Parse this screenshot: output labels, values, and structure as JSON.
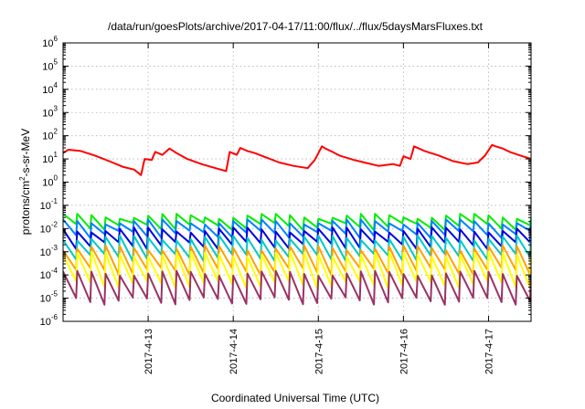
{
  "chart_data": {
    "type": "line",
    "title": "/data/run/goesPlots/archive/2017-04-17/11:00/flux/../flux/5daysMarsFluxes.txt",
    "xlabel": "Coordinated Universal Time (UTC)",
    "ylabel": "protons/cm²-s-sr-MeV",
    "ylabel_parts": {
      "pre": "protons/cm",
      "sup": "2",
      "post": "-s-sr-MeV"
    },
    "yscale": "log",
    "ylim": [
      1e-06,
      1000000.0
    ],
    "ytick_exponents": [
      -6,
      -5,
      -4,
      -3,
      -2,
      -1,
      0,
      1,
      2,
      3,
      4,
      5,
      6
    ],
    "xlim": [
      "2017-04-12 00:00",
      "2017-04-17 12:00"
    ],
    "xticks": [
      {
        "label": "2017-4-13",
        "day": 13
      },
      {
        "label": "2017-4-14",
        "day": 14
      },
      {
        "label": "2017-4-15",
        "day": 15
      },
      {
        "label": "2017-4-16",
        "day": 16
      },
      {
        "label": "2017-4-17",
        "day": 17
      }
    ],
    "grid": true,
    "series": [
      {
        "color": "#ff0000",
        "x": [
          "2017-04-12 00:00",
          "2017-04-12 01:30",
          "2017-04-12 05:00",
          "2017-04-12 09:00",
          "2017-04-12 13:00",
          "2017-04-12 17:00",
          "2017-04-12 20:00",
          "2017-04-12 22:00",
          "2017-04-12 23:00",
          "2017-04-13 01:00",
          "2017-04-13 02:00",
          "2017-04-13 04:00",
          "2017-04-13 06:00",
          "2017-04-13 08:00",
          "2017-04-13 11:00",
          "2017-04-13 15:00",
          "2017-04-13 19:00",
          "2017-04-13 22:00",
          "2017-04-13 23:00",
          "2017-04-14 01:00",
          "2017-04-14 02:00",
          "2017-04-14 04:00",
          "2017-04-14 06:00",
          "2017-04-14 09:00",
          "2017-04-14 13:00",
          "2017-04-14 17:00",
          "2017-04-14 21:00",
          "2017-04-14 23:00",
          "2017-04-15 01:00",
          "2017-04-15 02:00",
          "2017-04-15 04:00",
          "2017-04-15 06:00",
          "2017-04-15 10:00",
          "2017-04-15 13:00",
          "2017-04-15 17:00",
          "2017-04-15 21:00",
          "2017-04-15 23:00",
          "2017-04-16 00:00",
          "2017-04-16 02:00",
          "2017-04-16 03:00",
          "2017-04-16 06:00",
          "2017-04-16 10:00",
          "2017-04-16 14:00",
          "2017-04-16 18:00",
          "2017-04-16 21:00",
          "2017-04-16 23:00",
          "2017-04-17 01:00",
          "2017-04-17 02:00",
          "2017-04-17 04:00",
          "2017-04-17 06:00",
          "2017-04-17 09:00",
          "2017-04-17 12:00"
        ],
        "y": [
          18,
          25,
          22,
          14,
          8,
          4.5,
          3.5,
          2,
          10,
          9,
          20,
          15,
          28,
          18,
          10,
          6,
          4,
          3,
          20,
          15,
          30,
          22,
          18,
          12,
          7,
          5,
          4,
          9,
          35,
          28,
          20,
          14,
          9,
          7,
          5,
          6,
          5,
          13,
          10,
          35,
          22,
          14,
          8,
          6,
          7,
          14,
          40,
          35,
          28,
          20,
          14,
          10
        ]
      },
      {
        "color": "#00ee00",
        "x": [
          "2017-04-12 00:00",
          "2017-04-17 12:00"
        ],
        "y": [
          0.03,
          0.03
        ],
        "sawtooth": {
          "period_hours": 4,
          "high": 0.035,
          "low": 0.013
        }
      },
      {
        "color": "#0080ff",
        "x": [
          "2017-04-12 00:00",
          "2017-04-17 12:00"
        ],
        "y": [
          0.018,
          0.018
        ],
        "sawtooth": {
          "period_hours": 4,
          "high": 0.02,
          "low": 0.006
        }
      },
      {
        "color": "#0000dd",
        "x": [
          "2017-04-12 00:00",
          "2017-04-17 12:00"
        ],
        "y": [
          0.008,
          0.008
        ],
        "sawtooth": {
          "period_hours": 4,
          "high": 0.009,
          "low": 0.002
        }
      },
      {
        "color": "#00c8c8",
        "x": [
          "2017-04-12 00:00",
          "2017-04-17 12:00"
        ],
        "y": [
          0.004,
          0.004
        ],
        "sawtooth": {
          "period_hours": 4,
          "high": 0.004,
          "low": 0.0006
        }
      },
      {
        "color": "#ffa000",
        "x": [
          "2017-04-12 00:00",
          "2017-04-17 12:00"
        ],
        "y": [
          0.0015,
          0.0015
        ],
        "sawtooth": {
          "period_hours": 4,
          "high": 0.0015,
          "low": 0.00015
        }
      },
      {
        "color": "#ffff00",
        "x": [
          "2017-04-12 00:00",
          "2017-04-17 12:00"
        ],
        "y": [
          0.0008,
          0.0008
        ],
        "sawtooth": {
          "period_hours": 4,
          "high": 0.0008,
          "low": 4e-05
        }
      },
      {
        "color": "#993366",
        "x": [
          "2017-04-12 00:00",
          "2017-04-17 12:00"
        ],
        "y": [
          0.0001,
          0.0001
        ],
        "sawtooth": {
          "period_hours": 4,
          "high": 0.00012,
          "low": 8e-06
        }
      }
    ]
  }
}
